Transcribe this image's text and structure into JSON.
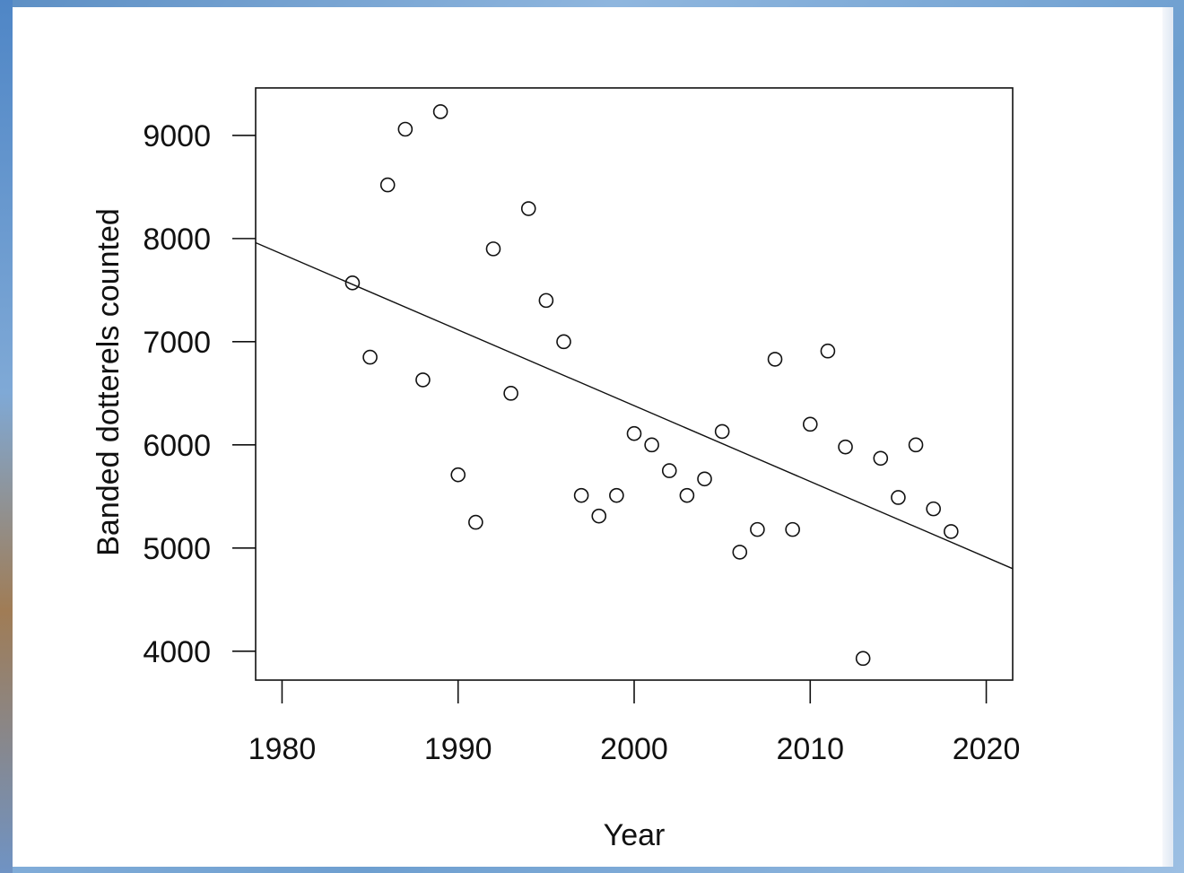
{
  "chart_data": {
    "type": "scatter",
    "title": "",
    "xlabel": "Year",
    "ylabel": "Banded dotterels counted",
    "xlim": [
      1978.5,
      2021.5
    ],
    "ylim": [
      3720,
      9460
    ],
    "x_ticks": [
      1980,
      1990,
      2000,
      2010,
      2020
    ],
    "y_ticks": [
      4000,
      5000,
      6000,
      7000,
      8000,
      9000
    ],
    "grid": false,
    "legend": "none",
    "marker": "open-circle",
    "series": [
      {
        "points": [
          [
            1984,
            7570
          ],
          [
            1985,
            6850
          ],
          [
            1986,
            8520
          ],
          [
            1987,
            9060
          ],
          [
            1988,
            6630
          ],
          [
            1989,
            9230
          ],
          [
            1990,
            5710
          ],
          [
            1991,
            5250
          ],
          [
            1992,
            7900
          ],
          [
            1993,
            6500
          ],
          [
            1994,
            8290
          ],
          [
            1995,
            7400
          ],
          [
            1996,
            7000
          ],
          [
            1997,
            5510
          ],
          [
            1998,
            5310
          ],
          [
            1999,
            5510
          ],
          [
            2000,
            6110
          ],
          [
            2001,
            6000
          ],
          [
            2002,
            5750
          ],
          [
            2003,
            5510
          ],
          [
            2004,
            5670
          ],
          [
            2005,
            6130
          ],
          [
            2006,
            4960
          ],
          [
            2007,
            5180
          ],
          [
            2008,
            6830
          ],
          [
            2009,
            5180
          ],
          [
            2010,
            6200
          ],
          [
            2011,
            6910
          ],
          [
            2012,
            5980
          ],
          [
            2013,
            3930
          ],
          [
            2014,
            5870
          ],
          [
            2015,
            5490
          ],
          [
            2016,
            6000
          ],
          [
            2017,
            5380
          ],
          [
            2018,
            5160
          ]
        ]
      }
    ],
    "trend_line": {
      "type": "linear",
      "points": [
        [
          1978.5,
          7960
        ],
        [
          2021.5,
          4800
        ]
      ]
    }
  }
}
